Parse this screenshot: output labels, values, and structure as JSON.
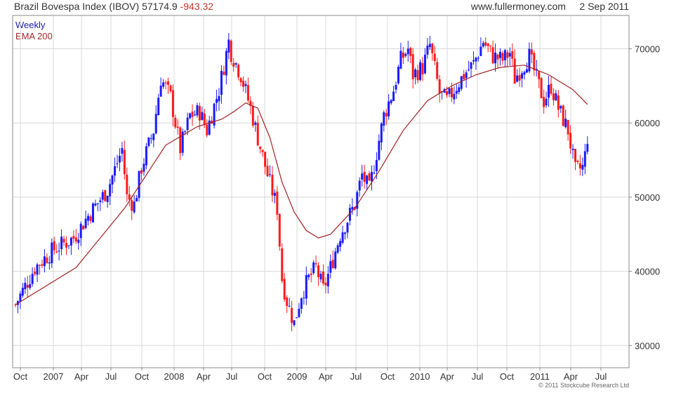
{
  "header": {
    "index_name": "Brazil Bovespa Index (IBOV)",
    "last_value": "57174.9",
    "change": "-943.32",
    "site": "www.fullermoney.com",
    "date": "2 Sep 2011"
  },
  "legend": {
    "series1": "Weekly",
    "series2": "EMA 200"
  },
  "copyright": "© 2011 Stockcube Research Ltd",
  "colors": {
    "up": "#1a1aff",
    "down": "#ff1a1a",
    "ema": "#a02020",
    "grid": "#d8d8d8"
  },
  "chart_data": {
    "type": "candlestick",
    "x_tick_labels": [
      "Oct",
      "2007",
      "Apr",
      "Jul",
      "Oct",
      "2008",
      "Apr",
      "Jul",
      "Oct",
      "2009",
      "Apr",
      "Jul",
      "Oct",
      "2010",
      "Apr",
      "Jul",
      "Oct",
      "2011",
      "Apr",
      "Jul"
    ],
    "y_tick_labels": [
      "30000",
      "40000",
      "50000",
      "60000",
      "70000"
    ],
    "y_ticks": [
      30000,
      40000,
      50000,
      60000,
      70000
    ],
    "ylim": [
      27000,
      74500
    ],
    "week_range": [
      0,
      252
    ],
    "grid": true,
    "close_path": [
      [
        0,
        35500
      ],
      [
        8,
        40500
      ],
      [
        16,
        43000
      ],
      [
        24,
        44500
      ],
      [
        30,
        47500
      ],
      [
        38,
        51000
      ],
      [
        44,
        56500
      ],
      [
        46,
        50000
      ],
      [
        49,
        49000
      ],
      [
        52,
        54000
      ],
      [
        57,
        59000
      ],
      [
        60,
        66000
      ],
      [
        64,
        63500
      ],
      [
        68,
        56500
      ],
      [
        72,
        61000
      ],
      [
        76,
        61500
      ],
      [
        79,
        59000
      ],
      [
        84,
        64500
      ],
      [
        88,
        71000
      ],
      [
        89,
        69500
      ],
      [
        93,
        66500
      ],
      [
        97,
        62000
      ],
      [
        100,
        58000
      ],
      [
        104,
        53000
      ],
      [
        108,
        48500
      ],
      [
        110,
        39000
      ],
      [
        112,
        36000
      ],
      [
        115,
        33000
      ],
      [
        118,
        37000
      ],
      [
        121,
        39000
      ],
      [
        124,
        40500
      ],
      [
        127,
        37500
      ],
      [
        130,
        40500
      ],
      [
        134,
        45000
      ],
      [
        140,
        49000
      ],
      [
        143,
        53000
      ],
      [
        146,
        51000
      ],
      [
        149,
        56000
      ],
      [
        152,
        61000
      ],
      [
        156,
        64500
      ],
      [
        159,
        68500
      ],
      [
        162,
        70000
      ],
      [
        164,
        66500
      ],
      [
        168,
        67500
      ],
      [
        171,
        70500
      ],
      [
        175,
        64000
      ],
      [
        178,
        63000
      ],
      [
        181,
        64500
      ],
      [
        185,
        66500
      ],
      [
        189,
        68000
      ],
      [
        193,
        71000
      ],
      [
        197,
        69000
      ],
      [
        201,
        68500
      ],
      [
        204,
        69500
      ],
      [
        206,
        66000
      ],
      [
        209,
        67500
      ],
      [
        212,
        69000
      ],
      [
        215,
        66000
      ],
      [
        218,
        63000
      ],
      [
        221,
        65000
      ],
      [
        224,
        62000
      ],
      [
        228,
        59000
      ],
      [
        231,
        53500
      ],
      [
        234,
        54000
      ],
      [
        236,
        57175
      ]
    ],
    "ema_path": [
      [
        0,
        35500
      ],
      [
        25,
        40500
      ],
      [
        45,
        48500
      ],
      [
        62,
        57000
      ],
      [
        75,
        59500
      ],
      [
        85,
        60500
      ],
      [
        90,
        61500
      ],
      [
        95,
        62700
      ],
      [
        100,
        62000
      ],
      [
        105,
        58000
      ],
      [
        110,
        52000
      ],
      [
        115,
        48000
      ],
      [
        120,
        45500
      ],
      [
        125,
        44500
      ],
      [
        130,
        45000
      ],
      [
        140,
        48500
      ],
      [
        150,
        53500
      ],
      [
        160,
        59000
      ],
      [
        170,
        63000
      ],
      [
        180,
        65000
      ],
      [
        190,
        66500
      ],
      [
        200,
        67500
      ],
      [
        210,
        67800
      ],
      [
        220,
        66500
      ],
      [
        230,
        64500
      ],
      [
        236,
        62500
      ]
    ]
  }
}
